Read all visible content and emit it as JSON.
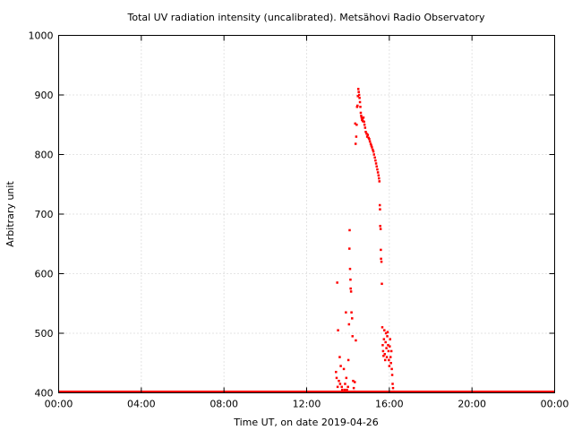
{
  "chart_data": {
    "type": "scatter",
    "title": "Total UV radiation intensity (uncalibrated). Metsähovi Radio Observatory",
    "xlabel": "Time UT, on date 2019-04-26",
    "ylabel": "Arbitrary unit",
    "xlim": [
      0,
      24
    ],
    "ylim": [
      400,
      1000
    ],
    "x_ticks": [
      {
        "value": 0,
        "label": "00:00"
      },
      {
        "value": 4,
        "label": "04:00"
      },
      {
        "value": 8,
        "label": "08:00"
      },
      {
        "value": 12,
        "label": "12:00"
      },
      {
        "value": 16,
        "label": "16:00"
      },
      {
        "value": 20,
        "label": "20:00"
      },
      {
        "value": 24,
        "label": "00:00"
      }
    ],
    "y_ticks": [
      {
        "value": 400,
        "label": "400"
      },
      {
        "value": 500,
        "label": "500"
      },
      {
        "value": 600,
        "label": "600"
      },
      {
        "value": 700,
        "label": "700"
      },
      {
        "value": 800,
        "label": "800"
      },
      {
        "value": 900,
        "label": "900"
      },
      {
        "value": 1000,
        "label": "1000"
      }
    ],
    "grid": true,
    "series": [
      {
        "color": "#ff0000",
        "baseline": {
          "x_start": 0,
          "x_end": 24,
          "y": 400
        },
        "points": [
          [
            13.48,
            585
          ],
          [
            13.42,
            435
          ],
          [
            13.45,
            425
          ],
          [
            13.5,
            410
          ],
          [
            13.52,
            505
          ],
          [
            13.56,
            420
          ],
          [
            13.6,
            460
          ],
          [
            13.62,
            415
          ],
          [
            13.65,
            445
          ],
          [
            13.7,
            410
          ],
          [
            13.72,
            405
          ],
          [
            13.76,
            402
          ],
          [
            13.8,
            440
          ],
          [
            13.84,
            405
          ],
          [
            13.86,
            415
          ],
          [
            13.9,
            535
          ],
          [
            13.92,
            425
          ],
          [
            13.95,
            405
          ],
          [
            14.0,
            410
          ],
          [
            14.02,
            455
          ],
          [
            14.05,
            515
          ],
          [
            14.07,
            642
          ],
          [
            14.08,
            673
          ],
          [
            14.1,
            608
          ],
          [
            14.12,
            590
          ],
          [
            14.13,
            575
          ],
          [
            14.15,
            570
          ],
          [
            14.17,
            535
          ],
          [
            14.2,
            525
          ],
          [
            14.22,
            495
          ],
          [
            14.25,
            420
          ],
          [
            14.28,
            408
          ],
          [
            14.3,
            402
          ],
          [
            14.33,
            418
          ],
          [
            14.35,
            852
          ],
          [
            14.37,
            818
          ],
          [
            14.38,
            488
          ],
          [
            14.4,
            830
          ],
          [
            14.42,
            850
          ],
          [
            14.44,
            880
          ],
          [
            14.46,
            882
          ],
          [
            14.48,
            898
          ],
          [
            14.5,
            910
          ],
          [
            14.52,
            905
          ],
          [
            14.54,
            900
          ],
          [
            14.56,
            895
          ],
          [
            14.58,
            888
          ],
          [
            14.6,
            880
          ],
          [
            14.62,
            870
          ],
          [
            14.64,
            865
          ],
          [
            14.66,
            862
          ],
          [
            14.68,
            858
          ],
          [
            14.7,
            860
          ],
          [
            14.72,
            856
          ],
          [
            14.75,
            862
          ],
          [
            14.78,
            855
          ],
          [
            14.8,
            850
          ],
          [
            14.83,
            845
          ],
          [
            14.86,
            838
          ],
          [
            14.9,
            835
          ],
          [
            14.93,
            830
          ],
          [
            14.96,
            833
          ],
          [
            15.0,
            828
          ],
          [
            15.03,
            826
          ],
          [
            15.06,
            822
          ],
          [
            15.1,
            818
          ],
          [
            15.13,
            815
          ],
          [
            15.16,
            812
          ],
          [
            15.2,
            808
          ],
          [
            15.23,
            805
          ],
          [
            15.26,
            800
          ],
          [
            15.3,
            795
          ],
          [
            15.33,
            790
          ],
          [
            15.36,
            785
          ],
          [
            15.39,
            780
          ],
          [
            15.42,
            775
          ],
          [
            15.45,
            770
          ],
          [
            15.48,
            765
          ],
          [
            15.5,
            760
          ],
          [
            15.52,
            755
          ],
          [
            15.54,
            715
          ],
          [
            15.55,
            708
          ],
          [
            15.56,
            680
          ],
          [
            15.58,
            675
          ],
          [
            15.59,
            640
          ],
          [
            15.6,
            625
          ],
          [
            15.62,
            620
          ],
          [
            15.64,
            583
          ],
          [
            15.66,
            510
          ],
          [
            15.68,
            480
          ],
          [
            15.7,
            470
          ],
          [
            15.72,
            462
          ],
          [
            15.74,
            490
          ],
          [
            15.76,
            505
          ],
          [
            15.78,
            465
          ],
          [
            15.8,
            455
          ],
          [
            15.82,
            485
          ],
          [
            15.84,
            500
          ],
          [
            15.86,
            475
          ],
          [
            15.88,
            460
          ],
          [
            15.9,
            495
          ],
          [
            15.92,
            502
          ],
          [
            15.94,
            480
          ],
          [
            15.96,
            470
          ],
          [
            15.98,
            455
          ],
          [
            16.0,
            445
          ],
          [
            16.02,
            478
          ],
          [
            16.04,
            490
          ],
          [
            16.06,
            460
          ],
          [
            16.08,
            450
          ],
          [
            16.1,
            470
          ],
          [
            16.12,
            440
          ],
          [
            16.14,
            430
          ],
          [
            16.16,
            415
          ],
          [
            16.18,
            408
          ],
          [
            16.2,
            402
          ]
        ]
      }
    ]
  }
}
